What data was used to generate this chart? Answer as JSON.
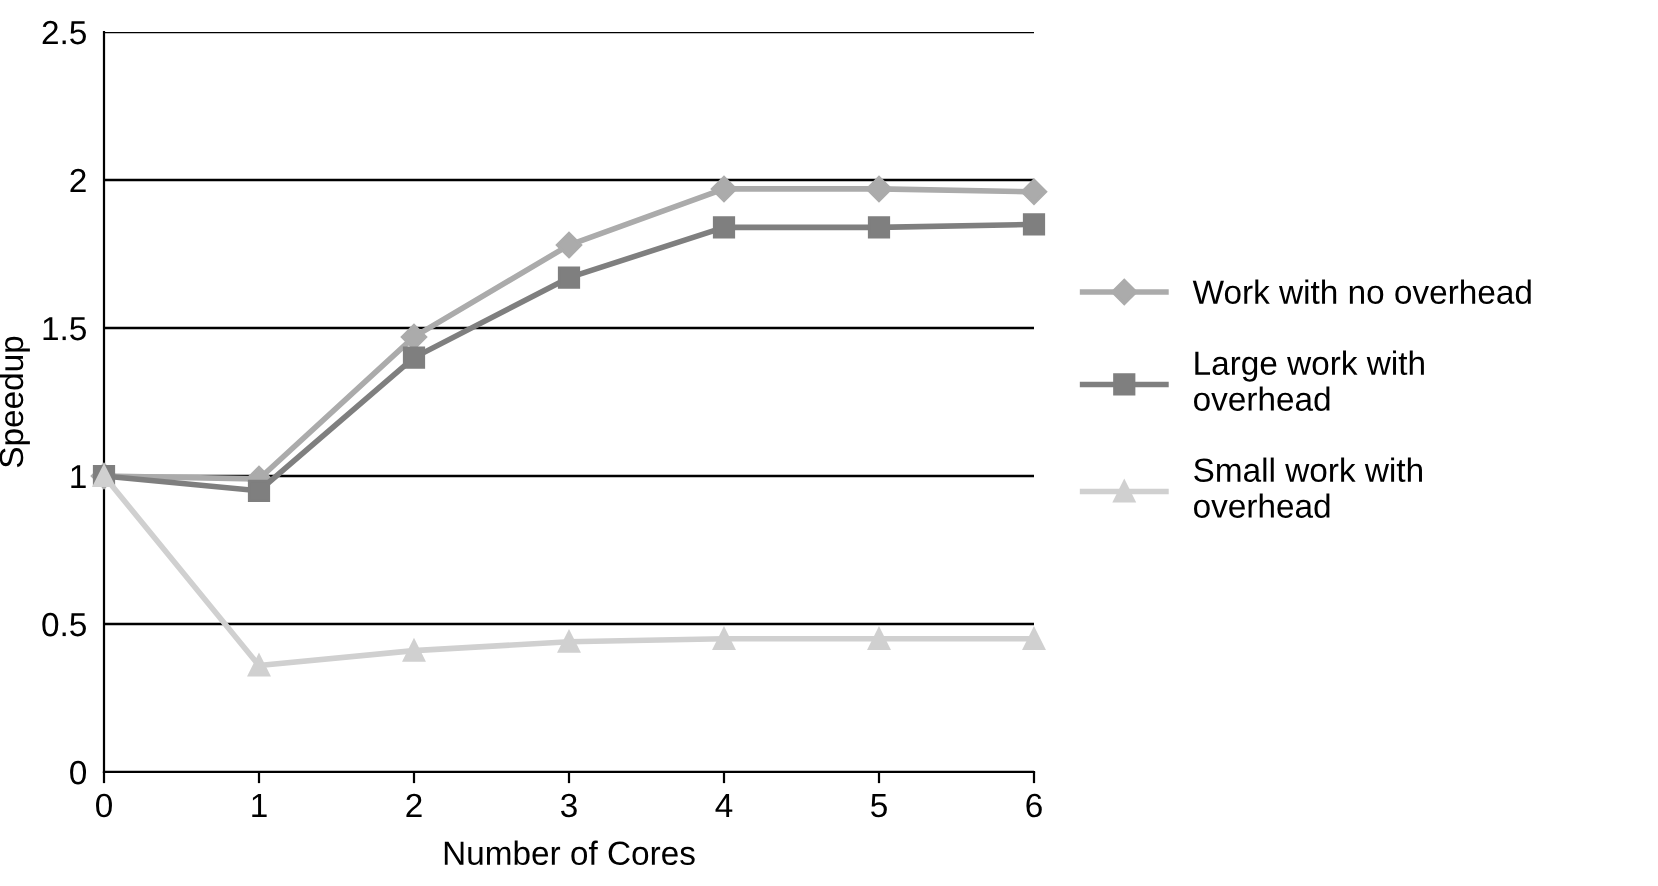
{
  "chart_data": {
    "type": "line",
    "xlabel": "Number of Cores",
    "ylabel": "Speedup",
    "x": [
      0,
      1,
      2,
      3,
      4,
      5,
      6
    ],
    "xlim": [
      0,
      6
    ],
    "xticks": [
      0,
      1,
      2,
      3,
      4,
      5,
      6
    ],
    "ylim": [
      0,
      2.5
    ],
    "yticks": [
      0,
      0.5,
      1,
      1.5,
      2,
      2.5
    ],
    "grid": "y",
    "legend": "right",
    "series": [
      {
        "name": "Work with no overhead",
        "color": "#ababab",
        "marker": "diamond",
        "values": [
          1.0,
          0.99,
          1.47,
          1.78,
          1.97,
          1.97,
          1.96
        ]
      },
      {
        "name": "Large work with\noverhead",
        "color": "#7f7f7f",
        "marker": "square",
        "values": [
          1.0,
          0.95,
          1.4,
          1.67,
          1.84,
          1.84,
          1.85
        ]
      },
      {
        "name": "Small work with\noverhead",
        "color": "#d0d0d0",
        "marker": "triangle",
        "values": [
          1.0,
          0.36,
          0.41,
          0.44,
          0.45,
          0.45,
          0.45
        ]
      }
    ]
  }
}
